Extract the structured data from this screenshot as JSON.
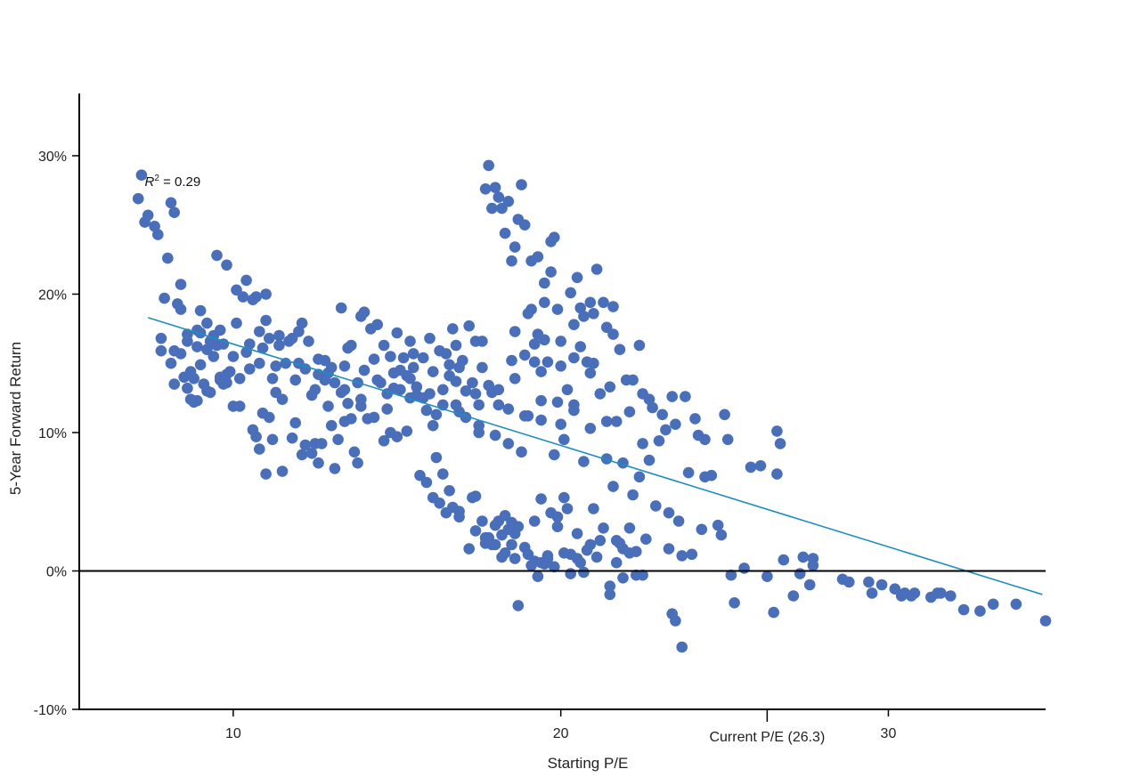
{
  "chart_data": {
    "type": "scatter",
    "title": "",
    "xlabel": "Starting P/E",
    "ylabel": "5-Year Forward Return",
    "xlim": [
      5.3,
      34.8
    ],
    "ylim": [
      -10,
      34.5
    ],
    "x_ticks": [
      10,
      20,
      30
    ],
    "y_ticks": [
      -10,
      0,
      10,
      20,
      30
    ],
    "y_tick_labels": [
      "-10%",
      "0%",
      "10%",
      "20%",
      "30%"
    ],
    "grid": false,
    "zero_line": 0,
    "annotations": {
      "r_squared_symbol": "R",
      "r_squared_sup": "2",
      "r_squared_value": " = 0.29",
      "r_squared_at": [
        7.3,
        27.8
      ],
      "current_pe": 26.3,
      "current_pe_label": "Current P/E (26.3)"
    },
    "trendline": {
      "x": [
        7.4,
        34.7
      ],
      "y": [
        18.3,
        -1.7
      ]
    },
    "colors": {
      "points": "#4a6fba",
      "trendline": "#1a8fc0",
      "axis": "#000000"
    },
    "points": [
      [
        7.1,
        26.9
      ],
      [
        7.2,
        28.6
      ],
      [
        7.3,
        25.2
      ],
      [
        7.4,
        25.7
      ],
      [
        7.6,
        24.9
      ],
      [
        7.7,
        24.3
      ],
      [
        8.0,
        22.6
      ],
      [
        8.1,
        26.6
      ],
      [
        8.2,
        25.9
      ],
      [
        7.8,
        16.8
      ],
      [
        7.8,
        15.9
      ],
      [
        8.1,
        15.0
      ],
      [
        8.2,
        15.9
      ],
      [
        8.3,
        19.3
      ],
      [
        8.4,
        15.7
      ],
      [
        8.4,
        20.7
      ],
      [
        8.5,
        14.0
      ],
      [
        8.6,
        17.1
      ],
      [
        8.6,
        13.2
      ],
      [
        8.7,
        14.4
      ],
      [
        8.8,
        12.2
      ],
      [
        8.8,
        13.9
      ],
      [
        8.9,
        16.2
      ],
      [
        8.9,
        12.3
      ],
      [
        9.0,
        17.2
      ],
      [
        9.0,
        18.8
      ],
      [
        9.0,
        14.9
      ],
      [
        9.1,
        13.5
      ],
      [
        9.2,
        17.9
      ],
      [
        9.2,
        16.0
      ],
      [
        9.3,
        12.9
      ],
      [
        9.4,
        15.5
      ],
      [
        9.4,
        17.0
      ],
      [
        9.5,
        22.8
      ],
      [
        9.5,
        16.3
      ],
      [
        9.6,
        17.4
      ],
      [
        9.6,
        14.0
      ],
      [
        9.7,
        13.5
      ],
      [
        9.8,
        22.1
      ],
      [
        9.7,
        16.4
      ],
      [
        9.8,
        13.6
      ],
      [
        9.9,
        14.4
      ],
      [
        10.0,
        11.9
      ],
      [
        10.0,
        15.5
      ],
      [
        10.1,
        20.3
      ],
      [
        10.2,
        13.9
      ],
      [
        10.2,
        11.9
      ],
      [
        10.3,
        19.8
      ],
      [
        10.4,
        21.0
      ],
      [
        10.5,
        14.6
      ],
      [
        10.6,
        10.2
      ],
      [
        10.6,
        19.6
      ],
      [
        10.7,
        9.7
      ],
      [
        10.7,
        19.8
      ],
      [
        10.8,
        8.8
      ],
      [
        10.8,
        17.3
      ],
      [
        10.9,
        16.1
      ],
      [
        11.0,
        20.0
      ],
      [
        11.0,
        18.1
      ],
      [
        11.0,
        7.0
      ],
      [
        11.1,
        11.1
      ],
      [
        11.1,
        16.8
      ],
      [
        11.2,
        9.5
      ],
      [
        11.2,
        13.9
      ],
      [
        11.3,
        12.9
      ],
      [
        11.4,
        17.0
      ],
      [
        11.5,
        7.2
      ],
      [
        11.5,
        12.4
      ],
      [
        11.6,
        15.0
      ],
      [
        11.7,
        16.6
      ],
      [
        11.8,
        9.6
      ],
      [
        11.8,
        16.8
      ],
      [
        11.9,
        13.8
      ],
      [
        12.0,
        17.3
      ],
      [
        12.1,
        8.4
      ],
      [
        12.1,
        17.9
      ],
      [
        12.2,
        14.6
      ],
      [
        12.2,
        9.1
      ],
      [
        12.3,
        16.6
      ],
      [
        12.4,
        8.5
      ],
      [
        12.5,
        9.2
      ],
      [
        12.5,
        13.1
      ],
      [
        12.6,
        7.8
      ],
      [
        12.6,
        15.3
      ],
      [
        12.7,
        9.2
      ],
      [
        12.8,
        15.2
      ],
      [
        12.8,
        13.8
      ],
      [
        12.9,
        11.9
      ],
      [
        13.0,
        14.7
      ],
      [
        13.0,
        10.5
      ],
      [
        13.1,
        7.4
      ],
      [
        13.1,
        13.6
      ],
      [
        13.2,
        9.5
      ],
      [
        13.3,
        19.0
      ],
      [
        13.3,
        12.9
      ],
      [
        13.4,
        14.8
      ],
      [
        13.4,
        10.8
      ],
      [
        13.5,
        12.1
      ],
      [
        13.5,
        16.1
      ],
      [
        13.6,
        11.0
      ],
      [
        13.7,
        8.6
      ],
      [
        13.8,
        13.6
      ],
      [
        13.8,
        7.8
      ],
      [
        13.9,
        18.4
      ],
      [
        13.9,
        11.9
      ],
      [
        14.0,
        18.7
      ],
      [
        14.0,
        14.5
      ],
      [
        14.1,
        11.0
      ],
      [
        14.2,
        17.5
      ],
      [
        14.3,
        15.3
      ],
      [
        14.3,
        11.1
      ],
      [
        14.4,
        17.8
      ],
      [
        14.5,
        13.6
      ],
      [
        14.6,
        9.4
      ],
      [
        14.6,
        16.3
      ],
      [
        14.7,
        11.7
      ],
      [
        14.8,
        10.0
      ],
      [
        14.8,
        15.5
      ],
      [
        14.9,
        14.3
      ],
      [
        15.0,
        9.7
      ],
      [
        15.0,
        17.2
      ],
      [
        15.1,
        13.1
      ],
      [
        15.2,
        15.4
      ],
      [
        15.3,
        14.1
      ],
      [
        15.3,
        10.1
      ],
      [
        15.4,
        16.6
      ],
      [
        15.4,
        12.5
      ],
      [
        15.5,
        14.7
      ],
      [
        15.6,
        12.7
      ],
      [
        15.7,
        6.9
      ],
      [
        15.8,
        15.4
      ],
      [
        15.8,
        12.5
      ],
      [
        15.9,
        6.4
      ],
      [
        16.0,
        16.8
      ],
      [
        16.0,
        12.8
      ],
      [
        16.1,
        5.3
      ],
      [
        16.1,
        14.4
      ],
      [
        16.2,
        11.3
      ],
      [
        16.2,
        8.2
      ],
      [
        16.3,
        15.9
      ],
      [
        16.3,
        4.9
      ],
      [
        16.4,
        13.1
      ],
      [
        16.4,
        7.0
      ],
      [
        16.5,
        15.7
      ],
      [
        16.5,
        4.2
      ],
      [
        16.6,
        14.1
      ],
      [
        16.7,
        17.5
      ],
      [
        16.7,
        4.6
      ],
      [
        16.8,
        12.0
      ],
      [
        16.8,
        16.3
      ],
      [
        16.9,
        14.7
      ],
      [
        16.9,
        3.9
      ],
      [
        17.0,
        15.2
      ],
      [
        17.1,
        11.1
      ],
      [
        17.2,
        17.7
      ],
      [
        17.2,
        1.6
      ],
      [
        17.3,
        13.6
      ],
      [
        17.3,
        5.3
      ],
      [
        17.4,
        16.6
      ],
      [
        17.4,
        2.9
      ],
      [
        17.5,
        10.5
      ],
      [
        17.5,
        12.0
      ],
      [
        17.6,
        3.6
      ],
      [
        17.6,
        14.7
      ],
      [
        17.7,
        27.6
      ],
      [
        17.7,
        2.4
      ],
      [
        17.8,
        29.3
      ],
      [
        17.8,
        13.4
      ],
      [
        17.9,
        26.2
      ],
      [
        17.9,
        1.9
      ],
      [
        18.0,
        27.7
      ],
      [
        18.0,
        9.8
      ],
      [
        18.0,
        3.3
      ],
      [
        18.1,
        27.0
      ],
      [
        18.1,
        13.1
      ],
      [
        18.2,
        26.2
      ],
      [
        18.2,
        2.6
      ],
      [
        18.3,
        24.4
      ],
      [
        18.3,
        1.3
      ],
      [
        18.4,
        26.7
      ],
      [
        18.4,
        9.2
      ],
      [
        18.5,
        22.4
      ],
      [
        18.5,
        3.5
      ],
      [
        18.6,
        23.4
      ],
      [
        18.6,
        13.9
      ],
      [
        18.6,
        0.9
      ],
      [
        18.7,
        25.4
      ],
      [
        18.7,
        -2.5
      ],
      [
        18.8,
        27.9
      ],
      [
        18.8,
        8.6
      ],
      [
        18.9,
        25.0
      ],
      [
        18.9,
        15.6
      ],
      [
        19.0,
        11.2
      ],
      [
        19.0,
        1.2
      ],
      [
        19.1,
        22.4
      ],
      [
        19.1,
        18.9
      ],
      [
        19.2,
        16.4
      ],
      [
        19.2,
        3.6
      ],
      [
        19.3,
        22.7
      ],
      [
        19.3,
        17.1
      ],
      [
        19.4,
        14.4
      ],
      [
        19.4,
        5.2
      ],
      [
        19.5,
        20.8
      ],
      [
        19.5,
        19.4
      ],
      [
        19.6,
        15.1
      ],
      [
        19.6,
        0.9
      ],
      [
        19.7,
        23.8
      ],
      [
        19.7,
        21.6
      ],
      [
        19.8,
        24.1
      ],
      [
        19.8,
        8.4
      ],
      [
        19.9,
        18.9
      ],
      [
        19.9,
        3.9
      ],
      [
        20.0,
        16.6
      ],
      [
        20.0,
        10.6
      ],
      [
        20.1,
        9.5
      ],
      [
        20.1,
        1.3
      ],
      [
        20.2,
        13.1
      ],
      [
        20.2,
        4.5
      ],
      [
        20.3,
        20.1
      ],
      [
        20.3,
        -0.2
      ],
      [
        20.4,
        17.8
      ],
      [
        20.4,
        12.0
      ],
      [
        20.5,
        21.2
      ],
      [
        20.5,
        2.7
      ],
      [
        20.6,
        16.2
      ],
      [
        20.6,
        0.6
      ],
      [
        20.7,
        18.4
      ],
      [
        20.7,
        7.9
      ],
      [
        20.8,
        15.1
      ],
      [
        20.8,
        1.5
      ],
      [
        20.9,
        19.4
      ],
      [
        20.9,
        10.3
      ],
      [
        21.0,
        18.6
      ],
      [
        21.0,
        4.5
      ],
      [
        21.1,
        21.8
      ],
      [
        21.2,
        12.8
      ],
      [
        21.2,
        2.2
      ],
      [
        21.3,
        19.4
      ],
      [
        21.4,
        17.6
      ],
      [
        21.4,
        8.1
      ],
      [
        21.5,
        13.3
      ],
      [
        21.5,
        -1.7
      ],
      [
        21.6,
        17.1
      ],
      [
        21.6,
        6.1
      ],
      [
        21.7,
        10.8
      ],
      [
        21.7,
        0.6
      ],
      [
        21.8,
        16.0
      ],
      [
        21.8,
        2.0
      ],
      [
        21.9,
        7.8
      ],
      [
        21.9,
        -0.5
      ],
      [
        22.0,
        13.8
      ],
      [
        22.1,
        11.5
      ],
      [
        22.1,
        1.3
      ],
      [
        22.2,
        5.5
      ],
      [
        22.2,
        13.8
      ],
      [
        22.3,
        -0.3
      ],
      [
        22.4,
        16.3
      ],
      [
        22.4,
        6.8
      ],
      [
        22.5,
        9.2
      ],
      [
        22.5,
        12.8
      ],
      [
        22.6,
        2.3
      ],
      [
        22.7,
        12.4
      ],
      [
        22.7,
        8.0
      ],
      [
        22.8,
        11.8
      ],
      [
        22.9,
        4.7
      ],
      [
        23.0,
        9.4
      ],
      [
        23.1,
        11.3
      ],
      [
        23.2,
        10.2
      ],
      [
        23.3,
        4.2
      ],
      [
        23.3,
        1.6
      ],
      [
        23.4,
        12.6
      ],
      [
        23.4,
        -3.1
      ],
      [
        23.5,
        -3.6
      ],
      [
        23.5,
        10.6
      ],
      [
        23.6,
        3.6
      ],
      [
        23.7,
        1.1
      ],
      [
        23.7,
        -5.5
      ],
      [
        23.8,
        12.6
      ],
      [
        23.9,
        7.1
      ],
      [
        24.0,
        1.2
      ],
      [
        24.1,
        11.0
      ],
      [
        24.2,
        9.8
      ],
      [
        24.3,
        3.0
      ],
      [
        24.4,
        9.5
      ],
      [
        24.4,
        6.8
      ],
      [
        24.6,
        6.9
      ],
      [
        24.8,
        3.3
      ],
      [
        24.9,
        2.6
      ],
      [
        25.0,
        11.3
      ],
      [
        25.1,
        9.5
      ],
      [
        25.2,
        -0.3
      ],
      [
        25.3,
        -2.3
      ],
      [
        25.6,
        0.2
      ],
      [
        25.8,
        7.5
      ],
      [
        26.1,
        7.6
      ],
      [
        26.3,
        -0.4
      ],
      [
        26.5,
        -3.0
      ],
      [
        26.6,
        10.1
      ],
      [
        26.7,
        9.2
      ],
      [
        26.6,
        7.0
      ],
      [
        26.8,
        0.8
      ],
      [
        27.1,
        -1.8
      ],
      [
        27.3,
        -0.2
      ],
      [
        27.4,
        1.0
      ],
      [
        27.6,
        -1.0
      ],
      [
        27.7,
        0.9
      ],
      [
        27.7,
        0.4
      ],
      [
        28.6,
        -0.6
      ],
      [
        28.8,
        -0.8
      ],
      [
        29.4,
        -0.8
      ],
      [
        29.5,
        -1.6
      ],
      [
        29.8,
        -1.0
      ],
      [
        30.2,
        -1.3
      ],
      [
        30.4,
        -1.8
      ],
      [
        30.5,
        -1.6
      ],
      [
        30.7,
        -1.8
      ],
      [
        30.8,
        -1.6
      ],
      [
        31.3,
        -1.9
      ],
      [
        31.5,
        -1.6
      ],
      [
        31.6,
        -1.6
      ],
      [
        31.9,
        -1.8
      ],
      [
        32.3,
        -2.8
      ],
      [
        32.8,
        -2.9
      ],
      [
        33.2,
        -2.4
      ],
      [
        33.9,
        -2.4
      ],
      [
        34.8,
        -3.6
      ],
      [
        8.2,
        13.5
      ],
      [
        8.7,
        12.4
      ],
      [
        9.2,
        13.0
      ],
      [
        9.8,
        14.2
      ],
      [
        10.4,
        15.8
      ],
      [
        10.9,
        11.4
      ],
      [
        11.3,
        14.8
      ],
      [
        11.9,
        10.7
      ],
      [
        12.4,
        12.7
      ],
      [
        12.9,
        14.3
      ],
      [
        13.4,
        13.1
      ],
      [
        13.9,
        12.4
      ],
      [
        14.4,
        13.8
      ],
      [
        14.9,
        13.2
      ],
      [
        15.4,
        13.9
      ],
      [
        15.9,
        11.6
      ],
      [
        16.4,
        12.0
      ],
      [
        16.9,
        11.5
      ],
      [
        17.4,
        12.8
      ],
      [
        17.9,
        12.9
      ],
      [
        18.4,
        11.7
      ],
      [
        18.9,
        11.2
      ],
      [
        19.4,
        10.9
      ],
      [
        19.9,
        12.2
      ],
      [
        20.4,
        11.6
      ],
      [
        20.9,
        14.3
      ],
      [
        21.4,
        10.8
      ],
      [
        16.6,
        5.8
      ],
      [
        16.9,
        4.3
      ],
      [
        17.4,
        5.4
      ],
      [
        17.7,
        2.0
      ],
      [
        18.1,
        3.6
      ],
      [
        18.3,
        4.0
      ],
      [
        18.5,
        1.9
      ],
      [
        18.7,
        3.2
      ],
      [
        19.1,
        0.4
      ],
      [
        19.3,
        -0.4
      ],
      [
        19.5,
        0.5
      ],
      [
        19.7,
        4.2
      ],
      [
        19.9,
        3.2
      ],
      [
        20.1,
        5.3
      ],
      [
        20.3,
        1.2
      ],
      [
        20.5,
        0.9
      ],
      [
        20.7,
        -0.1
      ],
      [
        20.9,
        1.9
      ],
      [
        21.1,
        1.0
      ],
      [
        21.3,
        3.1
      ],
      [
        21.5,
        -1.1
      ],
      [
        21.7,
        2.2
      ],
      [
        21.9,
        1.6
      ],
      [
        22.1,
        3.1
      ],
      [
        22.3,
        1.4
      ],
      [
        22.5,
        -0.3
      ],
      [
        19.8,
        0.3
      ],
      [
        19.6,
        1.1
      ],
      [
        19.4,
        0.6
      ],
      [
        19.2,
        0.7
      ],
      [
        18.9,
        1.7
      ],
      [
        18.6,
        2.7
      ],
      [
        18.4,
        3.0
      ],
      [
        18.2,
        1.0
      ],
      [
        18.0,
        1.9
      ],
      [
        17.8,
        2.4
      ],
      [
        19.0,
        18.6
      ],
      [
        19.5,
        16.7
      ],
      [
        20.0,
        14.8
      ],
      [
        20.6,
        19.0
      ],
      [
        21.0,
        15.0
      ],
      [
        18.6,
        17.3
      ],
      [
        19.4,
        12.3
      ],
      [
        21.6,
        19.1
      ],
      [
        20.4,
        15.4
      ],
      [
        19.2,
        15.1
      ],
      [
        8.4,
        18.9
      ],
      [
        8.9,
        17.4
      ],
      [
        9.6,
        13.8
      ],
      [
        10.1,
        17.9
      ],
      [
        10.5,
        16.4
      ],
      [
        9.3,
        16.6
      ],
      [
        8.6,
        16.6
      ],
      [
        7.9,
        19.7
      ],
      [
        12.6,
        14.2
      ],
      [
        13.6,
        16.3
      ],
      [
        15.1,
        14.5
      ],
      [
        15.5,
        15.7
      ],
      [
        16.8,
        13.7
      ],
      [
        17.5,
        10.0
      ],
      [
        18.5,
        15.2
      ],
      [
        10.8,
        15.0
      ],
      [
        11.4,
        16.3
      ],
      [
        12.0,
        15.0
      ],
      [
        14.7,
        12.8
      ],
      [
        15.6,
        13.3
      ],
      [
        16.1,
        10.5
      ],
      [
        16.6,
        14.9
      ],
      [
        17.1,
        13.0
      ],
      [
        17.6,
        16.6
      ],
      [
        18.1,
        12.0
      ]
    ]
  }
}
